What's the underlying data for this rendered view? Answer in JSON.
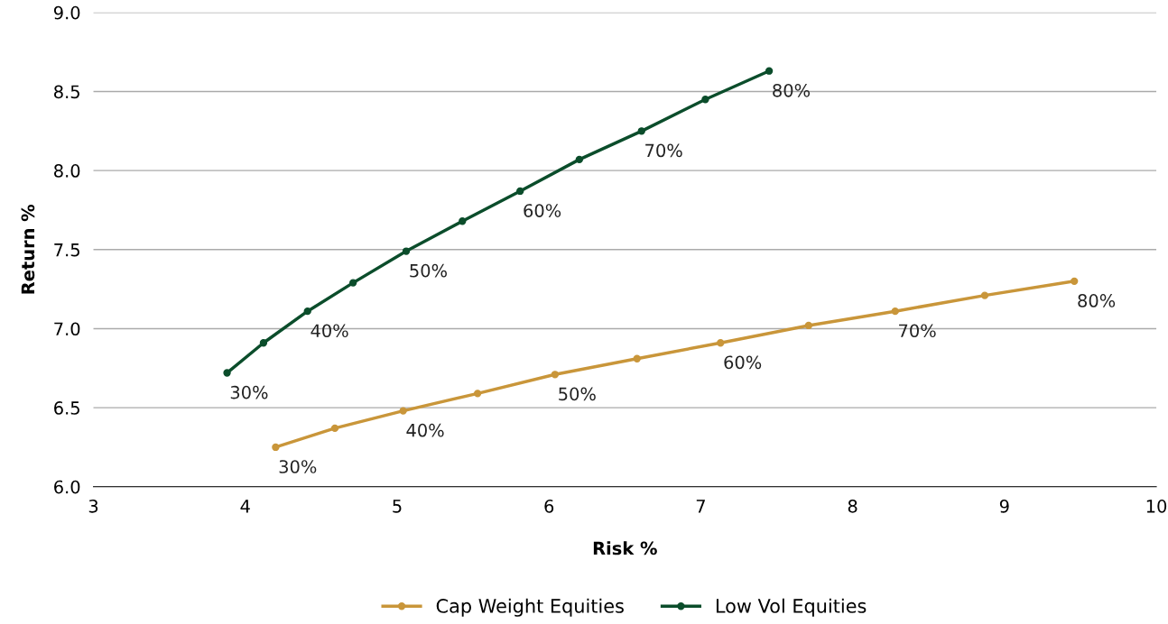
{
  "chart_data": {
    "type": "line",
    "xlabel": "Risk %",
    "ylabel": "Return %",
    "xlim": [
      3,
      10
    ],
    "xticks": [
      3,
      4,
      5,
      6,
      7,
      8,
      9,
      10
    ],
    "ylim": [
      6.0,
      9.0
    ],
    "yticks": [
      {
        "value": 6.0,
        "label": "6.0"
      },
      {
        "value": 6.5,
        "label": "6.5"
      },
      {
        "value": 7.0,
        "label": "7.0"
      },
      {
        "value": 7.5,
        "label": "7.5"
      },
      {
        "value": 8.0,
        "label": "8.0"
      },
      {
        "value": 8.5,
        "label": "8.5"
      },
      {
        "value": 9.0,
        "label": "9.0"
      }
    ],
    "grid": "y",
    "legend": "bottom",
    "marker": "circle",
    "line_style": "solid",
    "series": [
      {
        "name": "Cap Weight Equities",
        "color": "#c9963a",
        "x": [
          4.2,
          4.59,
          5.04,
          5.53,
          6.04,
          6.58,
          7.13,
          7.71,
          8.28,
          8.87,
          9.46
        ],
        "values": [
          6.25,
          6.37,
          6.48,
          6.59,
          6.71,
          6.81,
          6.91,
          7.02,
          7.11,
          7.21,
          7.3
        ]
      },
      {
        "name": "Low Vol Equities",
        "color": "#0b4d2b",
        "x": [
          3.88,
          4.12,
          4.41,
          4.71,
          5.06,
          5.43,
          5.81,
          6.2,
          6.61,
          7.03,
          7.45
        ],
        "values": [
          6.72,
          6.91,
          7.11,
          7.29,
          7.49,
          7.68,
          7.87,
          8.07,
          8.25,
          8.45,
          8.63
        ]
      }
    ],
    "annotations": [
      {
        "text": "30%",
        "x": 4.2,
        "y": 6.25
      },
      {
        "text": "40%",
        "x": 5.04,
        "y": 6.48
      },
      {
        "text": "50%",
        "x": 6.04,
        "y": 6.71
      },
      {
        "text": "60%",
        "x": 7.13,
        "y": 6.91
      },
      {
        "text": "70%",
        "x": 8.28,
        "y": 7.11
      },
      {
        "text": "80%",
        "x": 9.46,
        "y": 7.3
      },
      {
        "text": "30%",
        "x": 3.88,
        "y": 6.72
      },
      {
        "text": "40%",
        "x": 4.41,
        "y": 7.11
      },
      {
        "text": "50%",
        "x": 5.06,
        "y": 7.49
      },
      {
        "text": "60%",
        "x": 5.81,
        "y": 7.87
      },
      {
        "text": "70%",
        "x": 6.61,
        "y": 8.25
      },
      {
        "text": "80%",
        "x": 7.45,
        "y": 8.63
      }
    ]
  }
}
